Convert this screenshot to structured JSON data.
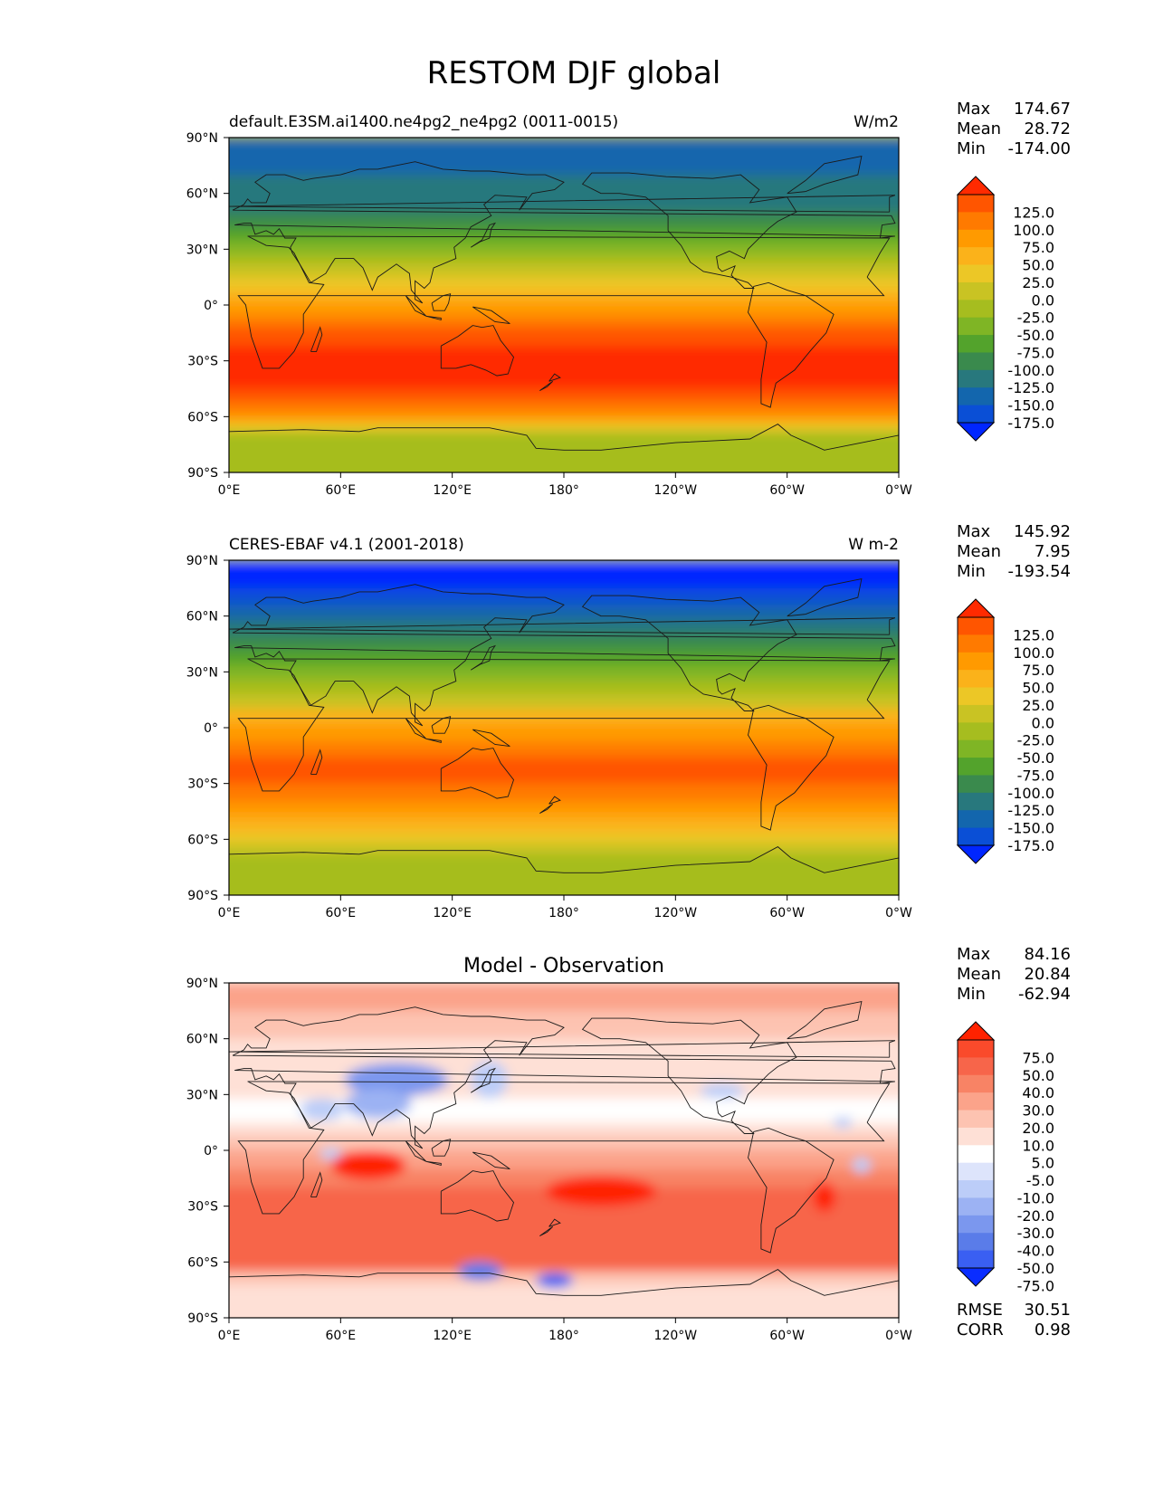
{
  "figure_title": "RESTOM DJF global",
  "chart_data": [
    {
      "type": "heatmap",
      "title": "default.E3SM.ai1400.ne4pg2_ne4pg2 (0011-0015)",
      "units": "W/m2",
      "stats": [
        {
          "label": "Max",
          "value": "174.67"
        },
        {
          "label": "Mean",
          "value": "28.72"
        },
        {
          "label": "Min",
          "value": "-174.00"
        }
      ],
      "colorbar": {
        "labels": [
          "125.0",
          "100.0",
          "75.0",
          "50.0",
          "25.0",
          "0.0",
          "-25.0",
          "-50.0",
          "-75.0",
          "-100.0",
          "-125.0",
          "-150.0",
          "-175.0"
        ],
        "colors": [
          "#ff2a00",
          "#ff5500",
          "#ff7a00",
          "#ff9a00",
          "#fbb21a",
          "#ecc726",
          "#c9c323",
          "#a6bd1f",
          "#7fb525",
          "#53a32c",
          "#3a8a4d",
          "#28787d",
          "#1366ad",
          "#0a4fd6",
          "#0026ff"
        ],
        "extend": "both"
      },
      "lat_ticks": [
        "90°N",
        "60°N",
        "30°N",
        "0°",
        "30°S",
        "60°S",
        "90°S"
      ],
      "lon_ticks": [
        "0°E",
        "60°E",
        "120°E",
        "180°",
        "120°W",
        "60°W",
        "0°W"
      ],
      "extra_stats": []
    },
    {
      "type": "heatmap",
      "title": "CERES-EBAF v4.1 (2001-2018)",
      "units": "W m-2",
      "stats": [
        {
          "label": "Max",
          "value": "145.92"
        },
        {
          "label": "Mean",
          "value": "7.95"
        },
        {
          "label": "Min",
          "value": "-193.54"
        }
      ],
      "colorbar": {
        "labels": [
          "125.0",
          "100.0",
          "75.0",
          "50.0",
          "25.0",
          "0.0",
          "-25.0",
          "-50.0",
          "-75.0",
          "-100.0",
          "-125.0",
          "-150.0",
          "-175.0"
        ],
        "colors": [
          "#ff2a00",
          "#ff5500",
          "#ff7a00",
          "#ff9a00",
          "#fbb21a",
          "#ecc726",
          "#c9c323",
          "#a6bd1f",
          "#7fb525",
          "#53a32c",
          "#3a8a4d",
          "#28787d",
          "#1366ad",
          "#0a4fd6",
          "#0026ff"
        ],
        "extend": "both"
      },
      "lat_ticks": [
        "90°N",
        "60°N",
        "30°N",
        "0°",
        "30°S",
        "60°S",
        "90°S"
      ],
      "lon_ticks": [
        "0°E",
        "60°E",
        "120°E",
        "180°",
        "120°W",
        "60°W",
        "0°W"
      ],
      "extra_stats": []
    },
    {
      "type": "heatmap",
      "title": "Model - Observation",
      "units": "",
      "stats": [
        {
          "label": "Max",
          "value": "84.16"
        },
        {
          "label": "Mean",
          "value": "20.84"
        },
        {
          "label": "Min",
          "value": "-62.94"
        }
      ],
      "colorbar": {
        "labels": [
          "75.0",
          "50.0",
          "40.0",
          "30.0",
          "20.0",
          "10.0",
          "5.0",
          "-5.0",
          "-10.0",
          "-20.0",
          "-30.0",
          "-40.0",
          "-50.0",
          "-75.0"
        ],
        "colors": [
          "#ff2200",
          "#fa4a2b",
          "#f7654a",
          "#f88365",
          "#fba38a",
          "#fdc3b1",
          "#fee0d6",
          "#ffffff",
          "#dde4fb",
          "#bccdf8",
          "#9cb2f3",
          "#7b97ee",
          "#5a7ce9",
          "#3a5ff2",
          "#0a2dff"
        ],
        "extend": "both"
      },
      "lat_ticks": [
        "90°N",
        "60°N",
        "30°N",
        "0°",
        "30°S",
        "60°S",
        "90°S"
      ],
      "lon_ticks": [
        "0°E",
        "60°E",
        "120°E",
        "180°",
        "120°W",
        "60°W",
        "0°W"
      ],
      "extra_stats": [
        {
          "label": "RMSE",
          "value": "30.51"
        },
        {
          "label": "CORR",
          "value": "0.98"
        }
      ]
    }
  ]
}
